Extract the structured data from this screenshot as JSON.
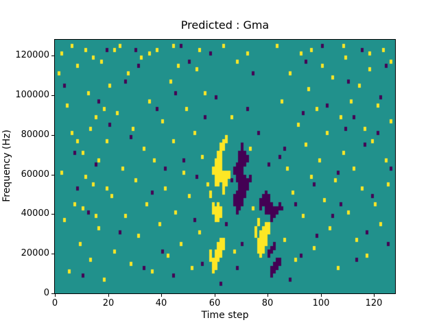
{
  "chart_data": {
    "type": "heatmap",
    "title": "Predicted : Gma",
    "xlabel": "Time step",
    "ylabel": "Frequency (Hz)",
    "xlim": [
      0,
      128
    ],
    "ylim": [
      0,
      128000
    ],
    "x_ticks": [
      0,
      20,
      40,
      60,
      80,
      100,
      120
    ],
    "y_ticks": [
      0,
      20000,
      40000,
      60000,
      80000,
      100000,
      120000
    ],
    "bin_height_hz": 2000,
    "grid": false,
    "legend": "none",
    "colors": {
      "background": "#21918c",
      "high": "#fde725",
      "low": "#440154"
    },
    "points_high": [
      [
        1,
        55
      ],
      [
        2,
        60
      ],
      [
        2,
        30
      ],
      [
        3,
        18
      ],
      [
        4,
        47
      ],
      [
        5,
        5
      ],
      [
        6,
        62
      ],
      [
        6,
        40
      ],
      [
        7,
        22
      ],
      [
        8,
        57
      ],
      [
        9,
        12
      ],
      [
        10,
        35
      ],
      [
        11,
        61
      ],
      [
        12,
        50
      ],
      [
        13,
        8
      ],
      [
        14,
        59
      ],
      [
        14,
        27
      ],
      [
        15,
        44
      ],
      [
        16,
        16
      ],
      [
        17,
        58
      ],
      [
        18,
        3
      ],
      [
        19,
        38
      ],
      [
        20,
        52
      ],
      [
        21,
        24
      ],
      [
        22,
        61
      ],
      [
        22,
        10
      ],
      [
        23,
        45
      ],
      [
        24,
        62
      ],
      [
        25,
        31
      ],
      [
        26,
        19
      ],
      [
        27,
        55
      ],
      [
        28,
        7
      ],
      [
        29,
        41
      ],
      [
        30,
        28
      ],
      [
        31,
        14
      ],
      [
        32,
        59
      ],
      [
        33,
        36
      ],
      [
        34,
        22
      ],
      [
        35,
        60
      ],
      [
        35,
        48
      ],
      [
        36,
        5
      ],
      [
        37,
        33
      ],
      [
        38,
        61
      ],
      [
        39,
        17
      ],
      [
        40,
        43
      ],
      [
        41,
        26
      ],
      [
        42,
        9
      ],
      [
        43,
        53
      ],
      [
        44,
        62
      ],
      [
        44,
        38
      ],
      [
        45,
        20
      ],
      [
        46,
        57
      ],
      [
        47,
        12
      ],
      [
        48,
        30
      ],
      [
        49,
        46
      ],
      [
        50,
        24
      ],
      [
        51,
        6
      ],
      [
        52,
        40
      ],
      [
        53,
        56
      ],
      [
        54,
        61
      ],
      [
        54,
        15
      ],
      [
        55,
        34
      ],
      [
        56,
        50
      ],
      [
        57,
        27
      ],
      [
        63,
        62
      ],
      [
        66,
        44
      ],
      [
        67,
        10
      ],
      [
        68,
        58
      ],
      [
        72,
        60
      ],
      [
        73,
        36
      ],
      [
        74,
        21
      ],
      [
        83,
        62
      ],
      [
        85,
        48
      ],
      [
        86,
        13
      ],
      [
        87,
        31
      ],
      [
        88,
        55
      ],
      [
        89,
        25
      ],
      [
        90,
        8
      ],
      [
        91,
        42
      ],
      [
        92,
        60
      ],
      [
        93,
        19
      ],
      [
        94,
        37
      ],
      [
        95,
        51
      ],
      [
        96,
        61
      ],
      [
        96,
        29
      ],
      [
        97,
        11
      ],
      [
        98,
        46
      ],
      [
        99,
        33
      ],
      [
        100,
        57
      ],
      [
        101,
        23
      ],
      [
        102,
        40
      ],
      [
        103,
        16
      ],
      [
        104,
        54
      ],
      [
        105,
        28
      ],
      [
        106,
        6
      ],
      [
        107,
        44
      ],
      [
        108,
        62
      ],
      [
        108,
        35
      ],
      [
        109,
        59
      ],
      [
        110,
        20
      ],
      [
        111,
        48
      ],
      [
        112,
        31
      ],
      [
        113,
        13
      ],
      [
        114,
        52
      ],
      [
        115,
        26
      ],
      [
        116,
        41
      ],
      [
        117,
        9
      ],
      [
        118,
        60
      ],
      [
        118,
        56
      ],
      [
        119,
        38
      ],
      [
        120,
        22
      ],
      [
        121,
        47
      ],
      [
        122,
        17
      ],
      [
        123,
        61
      ],
      [
        124,
        33
      ],
      [
        125,
        27
      ],
      [
        126,
        58
      ],
      [
        126,
        43
      ],
      [
        8,
        38
      ],
      [
        11,
        29
      ],
      [
        13,
        41
      ],
      [
        16,
        33
      ],
      [
        19,
        26
      ],
      [
        10,
        21
      ],
      [
        15,
        19
      ],
      [
        18,
        46
      ],
      [
        58,
        8
      ],
      [
        58,
        9
      ],
      [
        58,
        10
      ],
      [
        58,
        24
      ],
      [
        58,
        25
      ],
      [
        59,
        5
      ],
      [
        59,
        6
      ],
      [
        59,
        7
      ],
      [
        59,
        8
      ],
      [
        59,
        20
      ],
      [
        59,
        21
      ],
      [
        59,
        22
      ],
      [
        59,
        30
      ],
      [
        59,
        31
      ],
      [
        60,
        6
      ],
      [
        60,
        7
      ],
      [
        60,
        8
      ],
      [
        60,
        9
      ],
      [
        60,
        10
      ],
      [
        60,
        18
      ],
      [
        60,
        19
      ],
      [
        60,
        20
      ],
      [
        60,
        21
      ],
      [
        60,
        27
      ],
      [
        60,
        28
      ],
      [
        60,
        29
      ],
      [
        60,
        30
      ],
      [
        60,
        31
      ],
      [
        60,
        32
      ],
      [
        60,
        33
      ],
      [
        61,
        8
      ],
      [
        61,
        9
      ],
      [
        61,
        10
      ],
      [
        61,
        11
      ],
      [
        61,
        12
      ],
      [
        61,
        18
      ],
      [
        61,
        19
      ],
      [
        61,
        20
      ],
      [
        61,
        21
      ],
      [
        61,
        22
      ],
      [
        61,
        27
      ],
      [
        61,
        28
      ],
      [
        61,
        29
      ],
      [
        61,
        30
      ],
      [
        61,
        31
      ],
      [
        61,
        32
      ],
      [
        61,
        33
      ],
      [
        61,
        34
      ],
      [
        61,
        35
      ],
      [
        62,
        9
      ],
      [
        62,
        10
      ],
      [
        62,
        11
      ],
      [
        62,
        12
      ],
      [
        62,
        13
      ],
      [
        62,
        19
      ],
      [
        62,
        20
      ],
      [
        62,
        21
      ],
      [
        62,
        28
      ],
      [
        62,
        29
      ],
      [
        62,
        30
      ],
      [
        62,
        31
      ],
      [
        62,
        32
      ],
      [
        62,
        33
      ],
      [
        62,
        34
      ],
      [
        62,
        35
      ],
      [
        62,
        36
      ],
      [
        62,
        37
      ],
      [
        63,
        11
      ],
      [
        63,
        12
      ],
      [
        63,
        13
      ],
      [
        63,
        25
      ],
      [
        63,
        26
      ],
      [
        63,
        27
      ],
      [
        63,
        28
      ],
      [
        63,
        29
      ],
      [
        63,
        30
      ],
      [
        63,
        36
      ],
      [
        63,
        37
      ],
      [
        63,
        38
      ],
      [
        64,
        27
      ],
      [
        64,
        28
      ],
      [
        64,
        29
      ],
      [
        64,
        30
      ],
      [
        64,
        38
      ],
      [
        64,
        39
      ],
      [
        65,
        29
      ],
      [
        65,
        30
      ],
      [
        75,
        14
      ],
      [
        75,
        15
      ],
      [
        75,
        16
      ],
      [
        76,
        10
      ],
      [
        76,
        11
      ],
      [
        76,
        12
      ],
      [
        76,
        13
      ],
      [
        76,
        17
      ],
      [
        76,
        18
      ],
      [
        77,
        9
      ],
      [
        77,
        10
      ],
      [
        77,
        11
      ],
      [
        77,
        12
      ],
      [
        77,
        13
      ],
      [
        77,
        14
      ],
      [
        77,
        15
      ],
      [
        78,
        10
      ],
      [
        78,
        11
      ],
      [
        78,
        12
      ],
      [
        78,
        13
      ],
      [
        78,
        14
      ],
      [
        78,
        15
      ],
      [
        78,
        16
      ],
      [
        79,
        12
      ],
      [
        79,
        13
      ],
      [
        79,
        14
      ],
      [
        79,
        15
      ],
      [
        79,
        16
      ],
      [
        79,
        17
      ],
      [
        80,
        15
      ],
      [
        80,
        16
      ],
      [
        80,
        17
      ]
    ],
    "points_low": [
      [
        3,
        52
      ],
      [
        7,
        35
      ],
      [
        8,
        26
      ],
      [
        10,
        4
      ],
      [
        12,
        20
      ],
      [
        15,
        32
      ],
      [
        16,
        48
      ],
      [
        19,
        61
      ],
      [
        20,
        42
      ],
      [
        24,
        15
      ],
      [
        26,
        53
      ],
      [
        28,
        39
      ],
      [
        30,
        61
      ],
      [
        31,
        57
      ],
      [
        33,
        6
      ],
      [
        36,
        25
      ],
      [
        38,
        46
      ],
      [
        40,
        10
      ],
      [
        41,
        31
      ],
      [
        44,
        4
      ],
      [
        45,
        50
      ],
      [
        47,
        62
      ],
      [
        48,
        33
      ],
      [
        50,
        58
      ],
      [
        52,
        18
      ],
      [
        53,
        29
      ],
      [
        55,
        7
      ],
      [
        56,
        44
      ],
      [
        58,
        60
      ],
      [
        60,
        49
      ],
      [
        62,
        2
      ],
      [
        64,
        17
      ],
      [
        66,
        28
      ],
      [
        68,
        6
      ],
      [
        70,
        12
      ],
      [
        72,
        46
      ],
      [
        74,
        55
      ],
      [
        76,
        40
      ],
      [
        80,
        32
      ],
      [
        84,
        34
      ],
      [
        86,
        36
      ],
      [
        88,
        3
      ],
      [
        90,
        22
      ],
      [
        92,
        9
      ],
      [
        93,
        45
      ],
      [
        94,
        58
      ],
      [
        97,
        27
      ],
      [
        98,
        14
      ],
      [
        100,
        62
      ],
      [
        102,
        47
      ],
      [
        104,
        19
      ],
      [
        106,
        30
      ],
      [
        107,
        22
      ],
      [
        109,
        41
      ],
      [
        110,
        53
      ],
      [
        112,
        44
      ],
      [
        113,
        8
      ],
      [
        115,
        61
      ],
      [
        116,
        37
      ],
      [
        117,
        15
      ],
      [
        119,
        24
      ],
      [
        121,
        40
      ],
      [
        122,
        49
      ],
      [
        124,
        57
      ],
      [
        125,
        12
      ],
      [
        126,
        31
      ],
      [
        67,
        22
      ],
      [
        67,
        23
      ],
      [
        67,
        24
      ],
      [
        67,
        30
      ],
      [
        67,
        31
      ],
      [
        68,
        20
      ],
      [
        68,
        21
      ],
      [
        68,
        22
      ],
      [
        68,
        23
      ],
      [
        68,
        24
      ],
      [
        68,
        25
      ],
      [
        68,
        28
      ],
      [
        68,
        29
      ],
      [
        68,
        30
      ],
      [
        68,
        31
      ],
      [
        68,
        32
      ],
      [
        69,
        21
      ],
      [
        69,
        22
      ],
      [
        69,
        23
      ],
      [
        69,
        24
      ],
      [
        69,
        25
      ],
      [
        69,
        26
      ],
      [
        69,
        27
      ],
      [
        69,
        28
      ],
      [
        69,
        29
      ],
      [
        69,
        30
      ],
      [
        69,
        31
      ],
      [
        69,
        32
      ],
      [
        69,
        33
      ],
      [
        69,
        34
      ],
      [
        69,
        35
      ],
      [
        70,
        22
      ],
      [
        70,
        23
      ],
      [
        70,
        24
      ],
      [
        70,
        25
      ],
      [
        70,
        26
      ],
      [
        70,
        27
      ],
      [
        70,
        28
      ],
      [
        70,
        29
      ],
      [
        70,
        30
      ],
      [
        70,
        31
      ],
      [
        70,
        32
      ],
      [
        70,
        33
      ],
      [
        70,
        34
      ],
      [
        70,
        35
      ],
      [
        70,
        36
      ],
      [
        70,
        37
      ],
      [
        71,
        24
      ],
      [
        71,
        25
      ],
      [
        71,
        26
      ],
      [
        71,
        27
      ],
      [
        71,
        28
      ],
      [
        71,
        29
      ],
      [
        71,
        32
      ],
      [
        71,
        33
      ],
      [
        71,
        34
      ],
      [
        71,
        35
      ],
      [
        72,
        26
      ],
      [
        72,
        27
      ],
      [
        72,
        28
      ],
      [
        72,
        33
      ],
      [
        72,
        34
      ],
      [
        73,
        28
      ],
      [
        73,
        29
      ],
      [
        77,
        21
      ],
      [
        77,
        22
      ],
      [
        77,
        23
      ],
      [
        78,
        22
      ],
      [
        78,
        23
      ],
      [
        78,
        24
      ],
      [
        79,
        20
      ],
      [
        79,
        21
      ],
      [
        79,
        22
      ],
      [
        79,
        23
      ],
      [
        79,
        24
      ],
      [
        79,
        25
      ],
      [
        80,
        9
      ],
      [
        80,
        10
      ],
      [
        80,
        20
      ],
      [
        80,
        21
      ],
      [
        80,
        22
      ],
      [
        80,
        23
      ],
      [
        80,
        24
      ],
      [
        81,
        4
      ],
      [
        81,
        5
      ],
      [
        81,
        6
      ],
      [
        81,
        10
      ],
      [
        81,
        11
      ],
      [
        81,
        18
      ],
      [
        81,
        19
      ],
      [
        81,
        20
      ],
      [
        81,
        21
      ],
      [
        81,
        22
      ],
      [
        82,
        5
      ],
      [
        82,
        6
      ],
      [
        82,
        7
      ],
      [
        82,
        11
      ],
      [
        82,
        12
      ],
      [
        82,
        19
      ],
      [
        82,
        20
      ],
      [
        82,
        21
      ],
      [
        83,
        6
      ],
      [
        83,
        7
      ],
      [
        83,
        8
      ],
      [
        83,
        20
      ],
      [
        83,
        21
      ],
      [
        84,
        7
      ],
      [
        84,
        8
      ],
      [
        84,
        21
      ],
      [
        84,
        22
      ],
      [
        85,
        21
      ]
    ]
  }
}
